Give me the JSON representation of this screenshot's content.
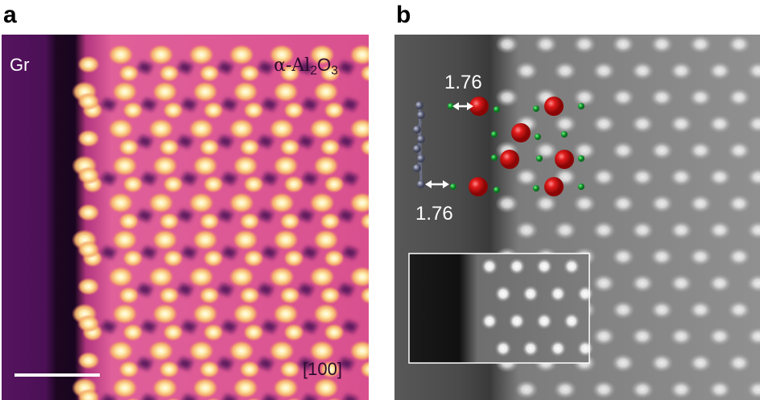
{
  "panel_a": {
    "letter": "a",
    "left_label": "Gr",
    "right_label_prefix": "α-Al",
    "right_label_sub1": "2",
    "right_label_mid": "O",
    "right_label_sub2": "3",
    "zone_axis": "[100]",
    "scale_bar": "scale-bar",
    "colormap": [
      "#2a0a2e",
      "#5b1566",
      "#9a2f8a",
      "#e0609a",
      "#f6a063",
      "#fde3a0",
      "#ffffe8"
    ]
  },
  "panel_b": {
    "letter": "b",
    "top_distance": "1.76",
    "bottom_distance": "1.76",
    "inset": "simulated-inset",
    "colors": {
      "oxygen": "#d01818",
      "aluminum": "#1fae3a",
      "carbon": "#6b6f86",
      "arrow": "#ffffff"
    }
  }
}
